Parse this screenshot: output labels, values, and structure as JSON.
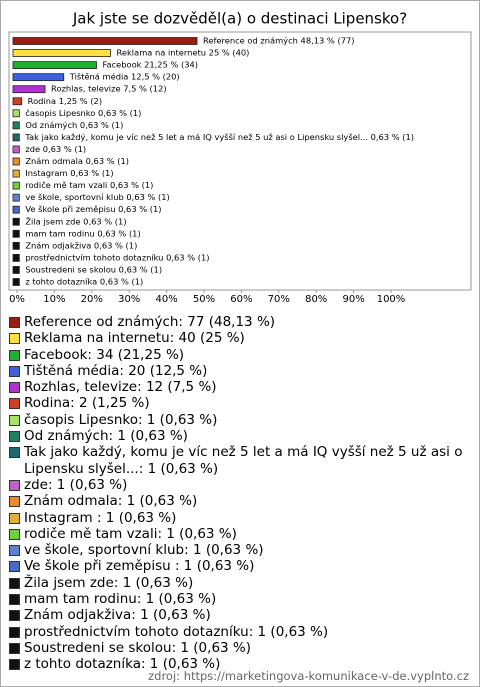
{
  "chart_data": {
    "type": "bar",
    "orientation": "horizontal",
    "title": "Jak jste se dozvěděl(a) o destinaci Lipensko?",
    "categories": [
      "Reference od známých",
      "Reklama na internetu",
      "Facebook",
      "Tištěná média",
      "Rozhlas, televize",
      "Rodina",
      "časopis Lipesnko",
      "Od známých",
      "Tak jako každý, komu je víc než 5 let a má IQ vyšší než 5 už asi o Lipensku slyšel...",
      "zde",
      "Znám odmala",
      "Instagram ",
      "rodiče mě tam vzali",
      "ve škole, sportovní klub",
      "Ve škole při zeměpisu ",
      "Žila jsem zde",
      "mam tam rodinu",
      "Znám odjakživa",
      "prostřednictvím tohoto dotazníku",
      "Soustredeni se skolou",
      "z tohto dotazníka"
    ],
    "values": [
      48.13,
      25,
      21.25,
      12.5,
      7.5,
      1.25,
      0.63,
      0.63,
      0.63,
      0.63,
      0.63,
      0.63,
      0.63,
      0.63,
      0.63,
      0.63,
      0.63,
      0.63,
      0.63,
      0.63,
      0.63
    ],
    "value_labels": [
      "Reference od známých 48,13 % (77)",
      "Reklama na internetu 25 % (40)",
      "Facebook 21,25 % (34)",
      "Tištěná média 12,5 % (20)",
      "Rozhlas, televize 7,5 % (12)",
      "Rodina 1,25 % (2)",
      "časopis Lipesnko 0,63 % (1)",
      "Od známých 0,63 % (1)",
      "Tak jako každý, komu je víc než 5 let a má IQ vyšší než 5 už asi o Lipensku slyšel... 0,63 % (1)",
      "zde 0,63 % (1)",
      "Znám odmala 0,63 % (1)",
      "Instagram  0,63 % (1)",
      "rodiče mě tam vzali 0,63 % (1)",
      "ve škole, sportovní klub 0,63 % (1)",
      "Ve škole při zeměpisu  0,63 % (1)",
      "Žila jsem zde 0,63 % (1)",
      "mam tam rodinu 0,63 % (1)",
      "Znám odjakživa 0,63 % (1)",
      "prostřednictvím tohoto dotazníku 0,63 % (1)",
      "Soustredeni se skolou 0,63 % (1)",
      "z tohto dotazníka 0,63 % (1)"
    ],
    "legend_labels": [
      "Reference od známých: 77 (48,13 %)",
      "Reklama na internetu: 40 (25 %)",
      "Facebook: 34 (21,25 %)",
      "Tištěná média: 20 (12,5 %)",
      "Rozhlas, televize: 12 (7,5 %)",
      "Rodina: 2 (1,25 %)",
      "časopis Lipesnko: 1 (0,63 %)",
      "Od známých: 1 (0,63 %)",
      "Tak jako každý, komu je víc než 5 let a má IQ vyšší než 5 už asi o Lipensku slyšel...: 1 (0,63 %)",
      "zde: 1 (0,63 %)",
      "Znám odmala: 1 (0,63 %)",
      "Instagram : 1 (0,63 %)",
      "rodiče mě tam vzali: 1 (0,63 %)",
      "ve škole, sportovní klub: 1 (0,63 %)",
      "Ve škole při zeměpisu : 1 (0,63 %)",
      "Žila jsem zde: 1 (0,63 %)",
      "mam tam rodinu: 1 (0,63 %)",
      "Znám odjakživa: 1 (0,63 %)",
      "prostřednictvím tohoto dotazníku: 1 (0,63 %)",
      "Soustredeni se skolou: 1 (0,63 %)",
      "z tohto dotazníka: 1 (0,63 %)"
    ],
    "colors": [
      "#9b1c10",
      "#ffe040",
      "#20b030",
      "#4060e0",
      "#b030d0",
      "#d04020",
      "#a8e070",
      "#208060",
      "#206870",
      "#c060c8",
      "#f08830",
      "#e0b040",
      "#70d040",
      "#6080d0",
      "#4868c8",
      "#111111",
      "#111111",
      "#111111",
      "#111111",
      "#111111",
      "#111111"
    ],
    "xlim": [
      0,
      100
    ],
    "xticks": [
      {
        "value": 0,
        "label": "0%"
      },
      {
        "value": 10,
        "label": "10%"
      },
      {
        "value": 20,
        "label": "20%"
      },
      {
        "value": 30,
        "label": "30%"
      },
      {
        "value": 40,
        "label": "40%"
      },
      {
        "value": 50,
        "label": "50%"
      },
      {
        "value": 60,
        "label": "60%"
      },
      {
        "value": 70,
        "label": "70%"
      },
      {
        "value": 80,
        "label": "80%"
      },
      {
        "value": 90,
        "label": "90%"
      },
      {
        "value": 100,
        "label": "100%"
      }
    ],
    "source": "zdroj: https://marketingova-komunikace-v-de.vyplnto.cz"
  }
}
